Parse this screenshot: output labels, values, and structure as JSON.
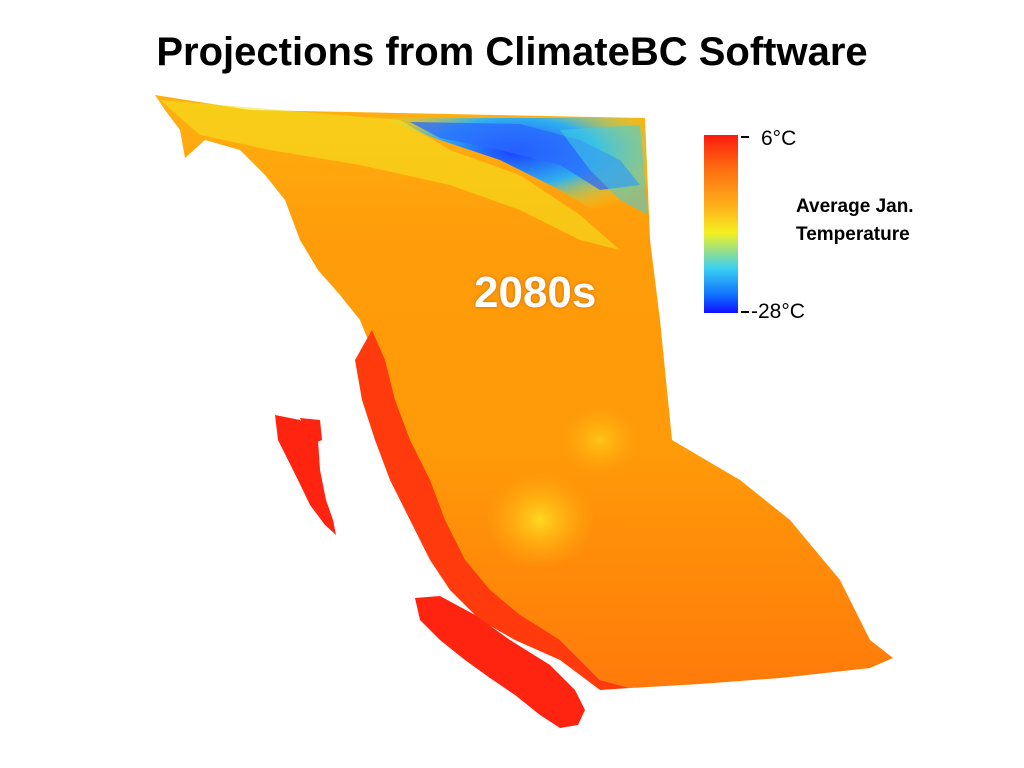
{
  "title": "Projections from ClimateBC Software",
  "map_label": "2080s",
  "legend": {
    "title_line1": "Average Jan.",
    "title_line2": "Temperature",
    "max_label": "6°C",
    "min_label": "-28°C",
    "colors": [
      "#ff1a10",
      "#ff6a10",
      "#ffb01a",
      "#f4f020",
      "#3ad0f0",
      "#1070ff",
      "#1010ff"
    ]
  },
  "region_colors": {
    "interior": "#ff9a0a",
    "coast": "#ff2a0c",
    "north_cold": "#2a70ff",
    "north_cool": "#f0ec20"
  }
}
